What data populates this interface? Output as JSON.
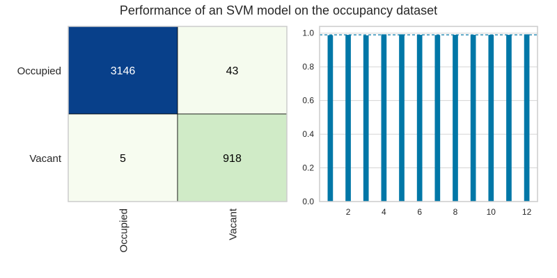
{
  "title": "Performance of an SVM model on the occupancy dataset",
  "chart_data": [
    {
      "type": "heatmap",
      "title": "",
      "rows": [
        "Occupied",
        "Vacant"
      ],
      "columns": [
        "Occupied",
        "Vacant"
      ],
      "values": [
        [
          3146,
          43
        ],
        [
          5,
          918
        ]
      ],
      "colormap": "GnBu",
      "colors": {
        "high": "#08408a",
        "low": "#f7fcf0",
        "mid": "#cfebc6"
      }
    },
    {
      "type": "bar",
      "title": "",
      "x": [
        1,
        2,
        3,
        4,
        5,
        6,
        7,
        8,
        9,
        10,
        11,
        12
      ],
      "values": [
        0.988,
        0.99,
        0.987,
        0.993,
        0.993,
        0.99,
        0.989,
        0.99,
        0.99,
        0.99,
        0.99,
        0.993
      ],
      "mean": 0.99,
      "xticks": [
        2,
        4,
        6,
        8,
        10,
        12
      ],
      "xlim": [
        0.4,
        12.6
      ],
      "yticks": [
        0.0,
        0.2,
        0.4,
        0.6,
        0.8,
        1.0
      ],
      "ylim": [
        0,
        1.04
      ],
      "grid": true,
      "bar_color": "#0177a7",
      "mean_line_color": "#0177a7"
    }
  ]
}
